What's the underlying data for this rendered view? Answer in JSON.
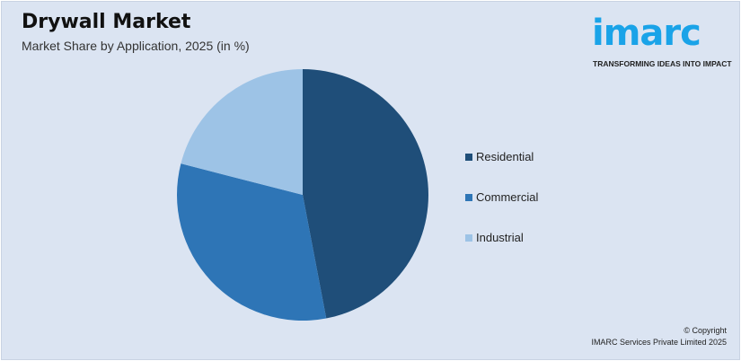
{
  "header": {
    "title": "Drywall Market",
    "subtitle": "Market Share by Application, 2025 (in %)"
  },
  "logo": {
    "text": "imarc",
    "tagline": "TRANSFORMING IDEAS INTO IMPACT",
    "color": "#1aa3e8"
  },
  "chart_data": {
    "type": "pie",
    "title": "Drywall Market",
    "subtitle": "Market Share by Application, 2025 (in %)",
    "categories": [
      "Residential",
      "Commercial",
      "Industrial"
    ],
    "values": [
      47,
      32,
      21
    ],
    "colors": [
      "#1f4e79",
      "#2e75b6",
      "#9dc3e6"
    ],
    "start_angle": "12 o'clock, clockwise",
    "legend_placement": "right"
  },
  "footer": {
    "copyright": "© Copyright",
    "company": "IMARC Services Private Limited 2025"
  }
}
